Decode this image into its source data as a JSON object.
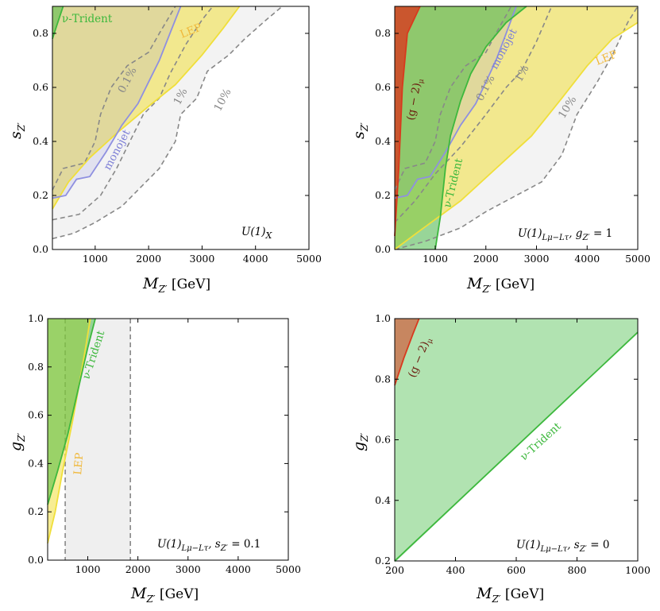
{
  "colors": {
    "lep": "#f0df3a",
    "trident": "#3db83d",
    "gm2": "#d83a1e",
    "monojet": "#8f90e0",
    "dash": "#888888",
    "gray_fill": "#ececec"
  },
  "chart_data": [
    {
      "type": "area",
      "label": "U(1)_X",
      "xlabel_main": "M",
      "xlabel_sub": "Z′",
      "xlabel_unit": " [GeV]",
      "ylabel_main": "s",
      "ylabel_sub": "Z′",
      "xlim": [
        200,
        5000
      ],
      "ylim": [
        0,
        0.9
      ],
      "xticks": [
        1000,
        2000,
        3000,
        4000,
        5000
      ],
      "yticks": [
        0.0,
        0.2,
        0.4,
        0.6,
        0.8
      ],
      "ytick_labels": [
        "0.0",
        "0.2",
        "0.4",
        "0.6",
        "0.8"
      ],
      "series": [
        {
          "name": "10%",
          "kind": "dashed",
          "fill": "gray",
          "points": [
            [
              200,
              0.04
            ],
            [
              600,
              0.06
            ],
            [
              1000,
              0.1
            ],
            [
              1500,
              0.16
            ],
            [
              1800,
              0.22
            ],
            [
              2200,
              0.3
            ],
            [
              2500,
              0.4
            ],
            [
              2600,
              0.5
            ],
            [
              2900,
              0.56
            ],
            [
              3100,
              0.66
            ],
            [
              3500,
              0.72
            ],
            [
              3800,
              0.78
            ],
            [
              4200,
              0.85
            ],
            [
              4500,
              0.9
            ]
          ]
        },
        {
          "name": "1%",
          "kind": "dashed",
          "points": [
            [
              200,
              0.11
            ],
            [
              700,
              0.13
            ],
            [
              1100,
              0.2
            ],
            [
              1400,
              0.3
            ],
            [
              1700,
              0.42
            ],
            [
              1900,
              0.5
            ],
            [
              2200,
              0.56
            ],
            [
              2400,
              0.65
            ],
            [
              2700,
              0.76
            ],
            [
              3000,
              0.85
            ],
            [
              3200,
              0.9
            ]
          ]
        },
        {
          "name": "0.1%",
          "kind": "dashed",
          "points": [
            [
              200,
              0.22
            ],
            [
              400,
              0.3
            ],
            [
              800,
              0.32
            ],
            [
              1000,
              0.4
            ],
            [
              1100,
              0.5
            ],
            [
              1300,
              0.6
            ],
            [
              1600,
              0.68
            ],
            [
              2000,
              0.73
            ],
            [
              2200,
              0.8
            ],
            [
              2500,
              0.9
            ]
          ]
        },
        {
          "name": "monojet",
          "kind": "region",
          "color": "monojet",
          "points": [
            [
              200,
              0.19
            ],
            [
              450,
              0.2
            ],
            [
              650,
              0.26
            ],
            [
              900,
              0.27
            ],
            [
              1200,
              0.36
            ],
            [
              1500,
              0.46
            ],
            [
              1800,
              0.54
            ],
            [
              2000,
              0.62
            ],
            [
              2200,
              0.7
            ],
            [
              2400,
              0.8
            ],
            [
              2600,
              0.9
            ]
          ]
        },
        {
          "name": "LEP",
          "kind": "region",
          "color": "lep",
          "points": [
            [
              200,
              0.15
            ],
            [
              500,
              0.25
            ],
            [
              900,
              0.34
            ],
            [
              1400,
              0.43
            ],
            [
              2000,
              0.53
            ],
            [
              2500,
              0.61
            ],
            [
              3000,
              0.72
            ],
            [
              3400,
              0.82
            ],
            [
              3700,
              0.9
            ]
          ]
        },
        {
          "name": "ν-Trident",
          "kind": "region",
          "color": "trident",
          "points": [
            [
              200,
              0.78
            ],
            [
              300,
              0.84
            ],
            [
              400,
              0.9
            ]
          ]
        }
      ],
      "labels": {
        "lep": "LEP",
        "trident": "ν-Trident",
        "monojet": "monojet",
        "p01": "0.1%",
        "p1": "1%",
        "p10": "10%",
        "model": "U(1)"
      }
    },
    {
      "type": "area",
      "label": "U(1)_{Lμ−Lτ}, g_Z′ = 1",
      "xlabel_main": "M",
      "xlabel_sub": "Z′",
      "xlabel_unit": " [GeV]",
      "ylabel_main": "s",
      "ylabel_sub": "Z′",
      "xlim": [
        200,
        5000
      ],
      "ylim": [
        0,
        0.9
      ],
      "xticks": [
        1000,
        2000,
        3000,
        4000,
        5000
      ],
      "yticks": [
        0.0,
        0.2,
        0.4,
        0.6,
        0.8
      ],
      "ytick_labels": [
        "0.0",
        "0.2",
        "0.4",
        "0.6",
        "0.8"
      ],
      "series": [
        {
          "name": "10%",
          "kind": "dashed",
          "fill": "gray",
          "points": [
            [
              200,
              0.0
            ],
            [
              800,
              0.03
            ],
            [
              1500,
              0.08
            ],
            [
              2000,
              0.14
            ],
            [
              2600,
              0.2
            ],
            [
              3100,
              0.25
            ],
            [
              3500,
              0.35
            ],
            [
              3800,
              0.5
            ],
            [
              4200,
              0.62
            ],
            [
              4500,
              0.72
            ],
            [
              4800,
              0.84
            ],
            [
              5000,
              0.9
            ]
          ]
        },
        {
          "name": "1%",
          "kind": "dashed",
          "points": [
            [
              200,
              0.1
            ],
            [
              600,
              0.18
            ],
            [
              1000,
              0.28
            ],
            [
              1500,
              0.38
            ],
            [
              2000,
              0.5
            ],
            [
              2400,
              0.6
            ],
            [
              2700,
              0.66
            ],
            [
              3000,
              0.77
            ],
            [
              3300,
              0.9
            ]
          ]
        },
        {
          "name": "0.1%",
          "kind": "dashed",
          "points": [
            [
              200,
              0.22
            ],
            [
              400,
              0.3
            ],
            [
              800,
              0.32
            ],
            [
              1000,
              0.4
            ],
            [
              1100,
              0.5
            ],
            [
              1300,
              0.6
            ],
            [
              1600,
              0.68
            ],
            [
              2000,
              0.73
            ],
            [
              2200,
              0.8
            ],
            [
              2500,
              0.9
            ]
          ]
        },
        {
          "name": "monojet",
          "kind": "region",
          "color": "monojet",
          "points": [
            [
              200,
              0.19
            ],
            [
              450,
              0.2
            ],
            [
              650,
              0.26
            ],
            [
              900,
              0.27
            ],
            [
              1200,
              0.36
            ],
            [
              1500,
              0.46
            ],
            [
              1800,
              0.54
            ],
            [
              2000,
              0.62
            ],
            [
              2200,
              0.7
            ],
            [
              2400,
              0.8
            ],
            [
              2600,
              0.9
            ]
          ]
        },
        {
          "name": "LEP",
          "kind": "region",
          "color": "lep",
          "points": [
            [
              200,
              0.0
            ],
            [
              700,
              0.07
            ],
            [
              1500,
              0.18
            ],
            [
              2200,
              0.3
            ],
            [
              2900,
              0.42
            ],
            [
              3500,
              0.56
            ],
            [
              4000,
              0.68
            ],
            [
              4500,
              0.78
            ],
            [
              5000,
              0.84
            ]
          ]
        },
        {
          "name": "ν-Trident",
          "kind": "region",
          "color": "trident",
          "points": [
            [
              1000,
              0.0
            ],
            [
              1100,
              0.12
            ],
            [
              1200,
              0.3
            ],
            [
              1300,
              0.42
            ],
            [
              1500,
              0.55
            ],
            [
              1700,
              0.65
            ],
            [
              2000,
              0.75
            ],
            [
              2400,
              0.84
            ],
            [
              2800,
              0.9
            ]
          ]
        },
        {
          "name": "(g−2)μ",
          "kind": "region",
          "color": "gm2",
          "points": [
            [
              200,
              0.05
            ],
            [
              280,
              0.3
            ],
            [
              350,
              0.6
            ],
            [
              450,
              0.8
            ],
            [
              700,
              0.9
            ]
          ]
        }
      ],
      "labels": {
        "lep": "LEP",
        "trident": "ν-Trident",
        "monojet": "monojet",
        "gm2": "(g − 2)",
        "p01": "0.1%",
        "p1": "1%",
        "p10": "10%",
        "model_a": "U(1)",
        "model_b": ", g",
        "model_c": " = 1"
      }
    },
    {
      "type": "area",
      "label": "U(1)_{Lμ−Lτ}, s_Z′ = 0.1",
      "xlabel_main": "M",
      "xlabel_sub": "Z′",
      "xlabel_unit": " [GeV]",
      "ylabel_main": "g",
      "ylabel_sub": "Z′",
      "xlim": [
        200,
        5000
      ],
      "ylim": [
        0,
        1.0
      ],
      "xticks": [
        1000,
        2000,
        3000,
        4000,
        5000
      ],
      "yticks": [
        0.0,
        0.2,
        0.4,
        0.6,
        0.8,
        1.0
      ],
      "ytick_labels": [
        "0.0",
        "0.2",
        "0.4",
        "0.6",
        "0.8",
        "1.0"
      ],
      "series": [
        {
          "name": "gray band",
          "kind": "vband",
          "from": 550,
          "to": 1850
        },
        {
          "name": "LEP",
          "kind": "region",
          "color": "lep",
          "points": [
            [
              200,
              0.07
            ],
            [
              350,
              0.2
            ],
            [
              500,
              0.37
            ],
            [
              700,
              0.58
            ],
            [
              850,
              0.75
            ],
            [
              950,
              0.87
            ],
            [
              1050,
              1.0
            ]
          ]
        },
        {
          "name": "ν-Trident",
          "kind": "region",
          "color": "trident",
          "points": [
            [
              200,
              0.23
            ],
            [
              400,
              0.37
            ],
            [
              600,
              0.52
            ],
            [
              800,
              0.7
            ],
            [
              1000,
              0.88
            ],
            [
              1150,
              1.0
            ]
          ]
        }
      ],
      "labels": {
        "lep": "LEP",
        "trident": "ν-Trident",
        "model_a": "U(1)",
        "model_b": ", s",
        "model_c": " = 0.1"
      }
    },
    {
      "type": "area",
      "label": "U(1)_{Lμ−Lτ}, s_Z′ = 0",
      "xlabel_main": "M",
      "xlabel_sub": "Z′",
      "xlabel_unit": " [GeV]",
      "ylabel_main": "g",
      "ylabel_sub": "Z′",
      "xlim": [
        200,
        1000
      ],
      "ylim": [
        0.2,
        1.0
      ],
      "xticks": [
        200,
        400,
        600,
        800,
        1000
      ],
      "yticks": [
        0.2,
        0.4,
        0.6,
        0.8,
        1.0
      ],
      "ytick_labels": [
        "0.2",
        "0.4",
        "0.6",
        "0.8",
        "1.0"
      ],
      "series": [
        {
          "name": "ν-Trident",
          "kind": "region",
          "color": "trident",
          "points": [
            [
              200,
              0.195
            ],
            [
              1000,
              0.955
            ]
          ]
        },
        {
          "name": "(g−2)μ",
          "kind": "region",
          "color": "gm2",
          "points": [
            [
              200,
              0.78
            ],
            [
              230,
              0.87
            ],
            [
              260,
              0.95
            ],
            [
              280,
              1.0
            ]
          ]
        }
      ],
      "labels": {
        "trident": "ν-Trident",
        "gm2": "(g − 2)",
        "model_a": "U(1)",
        "model_b": ", s",
        "model_c": " = 0"
      }
    }
  ]
}
